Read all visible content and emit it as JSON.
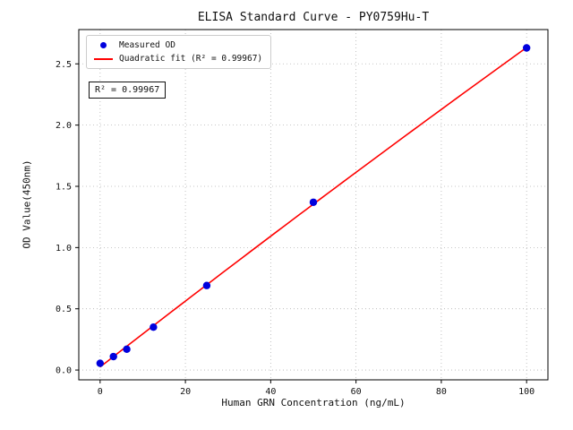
{
  "chart_data": {
    "type": "scatter",
    "title": "ELISA Standard Curve - PY0759Hu-T",
    "xlabel": "Human GRN Concentration (ng/mL)",
    "ylabel": "OD Value(450nm)",
    "xlim": [
      -5,
      105
    ],
    "ylim": [
      -0.08,
      2.78
    ],
    "x_ticks": [
      0,
      20,
      40,
      60,
      80,
      100
    ],
    "x_tick_labels": [
      "0",
      "20",
      "40",
      "60",
      "80",
      "100"
    ],
    "y_ticks": [
      0.0,
      0.5,
      1.0,
      1.5,
      2.0,
      2.5
    ],
    "y_tick_labels": [
      "0.0",
      "0.5",
      "1.0",
      "1.5",
      "2.0",
      "2.5"
    ],
    "grid": true,
    "legend_position": "upper left",
    "series": [
      {
        "name": "Measured OD",
        "type": "scatter",
        "color": "#0000dd",
        "x": [
          0,
          3.125,
          6.25,
          12.5,
          25,
          50,
          100
        ],
        "y": [
          0.055,
          0.11,
          0.17,
          0.35,
          0.69,
          1.37,
          2.63
        ]
      },
      {
        "name": "Quadratic fit (R² = 0.99967)",
        "type": "line",
        "fit": "quadratic",
        "color": "#ff0000",
        "x_range": [
          0,
          100
        ]
      }
    ],
    "annotation": "R² = 0.99967",
    "colors": {
      "grid": "#b3b3b3",
      "spine": "#000000",
      "background": "#ffffff"
    }
  },
  "legend": {
    "measured_label": "Measured OD",
    "fit_label": "Quadratic fit (R² = 0.99967)"
  },
  "annotation_box": {
    "text": "R² = 0.99967"
  }
}
